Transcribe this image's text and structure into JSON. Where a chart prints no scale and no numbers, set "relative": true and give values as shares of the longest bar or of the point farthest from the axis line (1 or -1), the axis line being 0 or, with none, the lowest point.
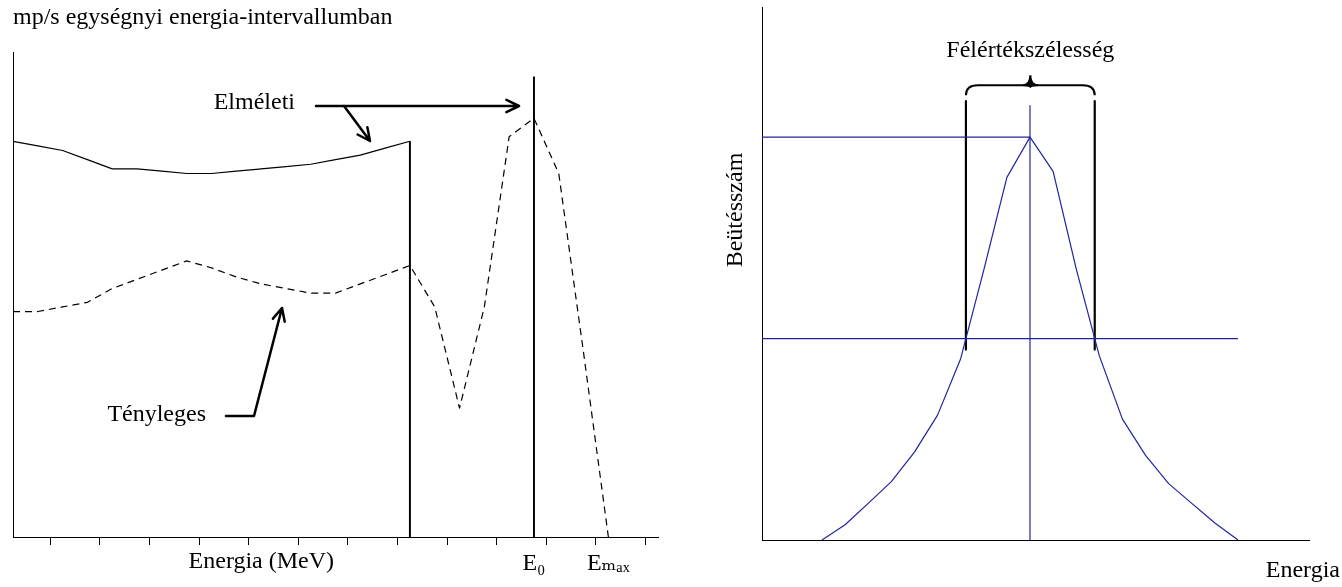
{
  "chart_data": [
    {
      "type": "line",
      "title": "mp/s egységnyi energia-intervallumban",
      "xlabel": "Energia (MeV)",
      "relative": true,
      "categories": [
        null,
        null,
        null,
        null,
        null,
        null,
        null,
        null,
        null,
        null,
        null,
        null,
        null,
        null,
        null,
        null,
        null,
        null,
        null,
        null,
        null,
        "E₀",
        null,
        null,
        "Eₘₐₓ",
        null,
        null
      ],
      "tick_labels": "x",
      "marker": "none",
      "series": [
        {
          "color": "#000000",
          "values": [
            0.86,
            0.85,
            0.84,
            0.82,
            0.8,
            0.8,
            0.795,
            0.79,
            0.79,
            0.795,
            0.8,
            0.805,
            0.81,
            0.82,
            0.83,
            0.845,
            0.86,
            null,
            null,
            null,
            null,
            null,
            null,
            null,
            null,
            null,
            null
          ]
        },
        {
          "type": "bar",
          "color": "#000000",
          "values": [
            null,
            null,
            null,
            null,
            null,
            null,
            null,
            null,
            null,
            null,
            null,
            null,
            null,
            null,
            null,
            null,
            0.86,
            null,
            null,
            null,
            null,
            1,
            null,
            null,
            null,
            null,
            null
          ]
        },
        {
          "color": "#000000",
          "line_style": "dashed",
          "values": [
            0.49,
            0.49,
            0.5,
            0.51,
            0.54,
            0.56,
            0.58,
            0.6,
            0.585,
            0.565,
            0.55,
            0.54,
            0.53,
            0.53,
            0.55,
            0.57,
            0.59,
            0.5,
            0.28,
            0.5,
            0.87,
            0.91,
            0.79,
            0.4,
            0,
            null,
            null
          ]
        }
      ],
      "annotations": [
        "Elméleti",
        "Tényleges"
      ]
    },
    {
      "type": "line",
      "xlabel": "Energia",
      "ylabel": "Beütésszám",
      "relative": true,
      "categories": [
        null,
        null,
        null,
        null,
        null,
        null,
        null,
        null,
        null,
        null,
        null,
        null,
        null,
        null,
        null,
        null,
        null,
        null,
        null
      ],
      "tick_labels": false,
      "marker": "none",
      "series": [
        {
          "color": "#2323a0",
          "values": [
            0,
            0.038,
            0.091,
            0.145,
            0.218,
            0.31,
            0.45,
            0.67,
            0.9,
            1,
            0.915,
            0.673,
            0.457,
            0.3,
            0.21,
            0.14,
            0.091,
            0.042,
            0
          ]
        }
      ],
      "ref_lines": [
        {
          "axis": "y",
          "value": 1,
          "color": "#2323a0"
        },
        {
          "axis": "y",
          "value": 0.5,
          "color": "#2323a0"
        }
      ],
      "annotations": [
        "Félértékszélesség"
      ]
    }
  ]
}
